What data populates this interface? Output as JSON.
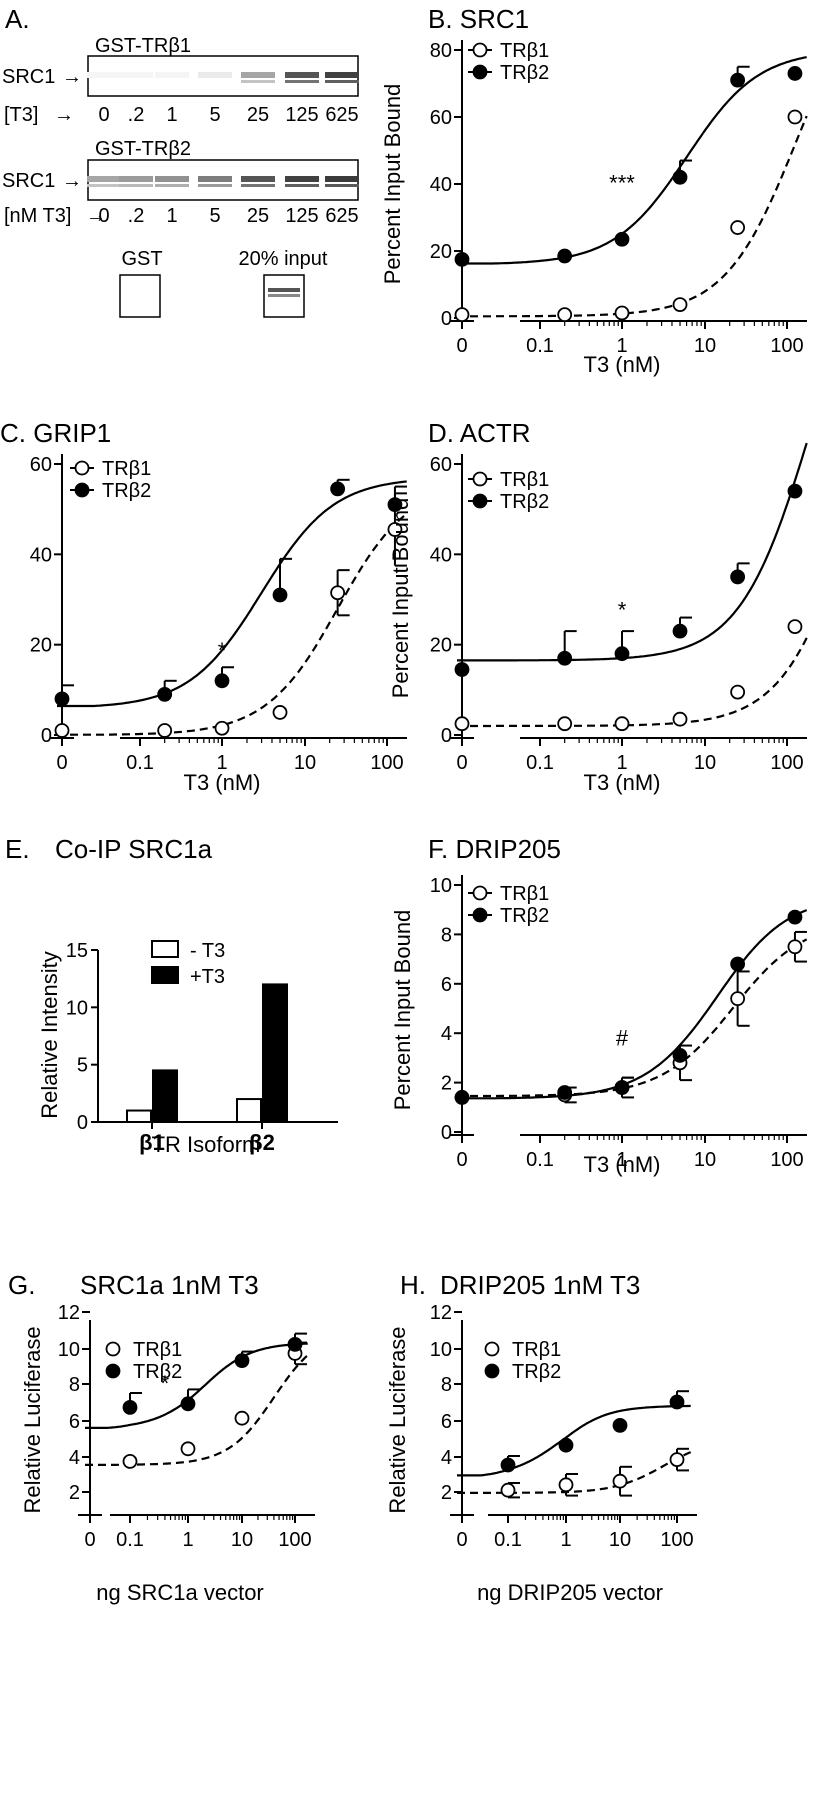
{
  "panel_a": {
    "label": "A.",
    "blot1": {
      "title": "GST-TRβ1",
      "band": "SRC1",
      "dose_label": "[T3]",
      "doses": [
        "0",
        ".2",
        "1",
        "5",
        "25",
        "125",
        "625"
      ],
      "intensity": [
        0.05,
        0.05,
        0.05,
        0.1,
        0.45,
        0.85,
        0.95
      ]
    },
    "blot2": {
      "title": "GST-TRβ2",
      "band": "SRC1",
      "dose_label": "[nM T3]",
      "doses": [
        "0",
        ".2",
        "1",
        "5",
        "25",
        "125",
        "625"
      ],
      "intensity": [
        0.45,
        0.5,
        0.55,
        0.65,
        0.85,
        0.95,
        0.98
      ]
    },
    "controls": [
      "GST",
      "20% input"
    ]
  },
  "chart_data": [
    {
      "id": "B",
      "panel_label": "B. SRC1",
      "type": "line",
      "xlabel": "T3 (nM)",
      "ylabel": "Percent Input Bound",
      "x_scale": "log-with-zero",
      "xticks": [
        "0",
        "0.1",
        "1",
        "10",
        "100"
      ],
      "ylim": [
        0,
        80
      ],
      "yticks": [
        "0",
        "20",
        "40",
        "60",
        "80"
      ],
      "series": [
        {
          "name": "TRβ1",
          "marker": "open",
          "line": "dashed",
          "x": [
            0,
            0.2,
            1,
            5,
            25,
            125
          ],
          "y": [
            1,
            1,
            1.5,
            4,
            27,
            60
          ],
          "err": [
            0,
            0,
            0,
            0,
            0,
            0
          ],
          "fit": {
            "bottom": 0.5,
            "top": 105,
            "ec50": 130,
            "hill": 1.0
          }
        },
        {
          "name": "TRβ2",
          "marker": "filled",
          "line": "solid",
          "x": [
            0,
            0.2,
            1,
            5,
            25,
            125
          ],
          "y": [
            17.5,
            18.5,
            23.5,
            42,
            71,
            73
          ],
          "err": [
            0,
            0,
            0,
            5,
            4,
            0
          ],
          "fit": {
            "bottom": 16,
            "top": 80,
            "ec50": 6,
            "hill": 1.0
          }
        }
      ],
      "annotation": "***",
      "annotation_x": 1,
      "annotation_y": 38
    },
    {
      "id": "C",
      "panel_label": "C. GRIP1",
      "type": "line",
      "xlabel": "T3 (nM)",
      "ylabel": "",
      "x_scale": "log-with-zero",
      "xticks": [
        "0",
        "0.1",
        "1",
        "10",
        "100"
      ],
      "ylim": [
        0,
        60
      ],
      "yticks": [
        "0",
        "20",
        "40",
        "60"
      ],
      "series": [
        {
          "name": "TRβ1",
          "marker": "open",
          "line": "dashed",
          "x": [
            0,
            0.2,
            1,
            5,
            25,
            125
          ],
          "y": [
            1,
            1,
            1.5,
            5,
            31.5,
            45.5
          ],
          "err": [
            0,
            0,
            0,
            0,
            5,
            8
          ],
          "fit": {
            "bottom": 0,
            "top": 56,
            "ec50": 25,
            "hill": 1.0
          }
        },
        {
          "name": "TRβ2",
          "marker": "filled",
          "line": "solid",
          "x": [
            0,
            0.2,
            1,
            5,
            25,
            125
          ],
          "y": [
            8,
            9,
            12,
            31,
            54.5,
            51
          ],
          "err": [
            3,
            3,
            3,
            8,
            2,
            4
          ],
          "fit": {
            "bottom": 6,
            "top": 57,
            "ec50": 3,
            "hill": 1.0
          }
        }
      ],
      "annotation": "*",
      "annotation_x": 1,
      "annotation_y": 17
    },
    {
      "id": "D",
      "panel_label": "D. ACTR",
      "type": "line",
      "xlabel": "T3 (nM)",
      "ylabel": "Percent Input Bound",
      "x_scale": "log-with-zero",
      "xticks": [
        "0",
        "0.1",
        "1",
        "10",
        "100"
      ],
      "ylim": [
        0,
        60
      ],
      "yticks": [
        "0",
        "20",
        "40",
        "60"
      ],
      "series": [
        {
          "name": "TRβ1",
          "marker": "open",
          "line": "dashed",
          "x": [
            0,
            0.2,
            1,
            5,
            25,
            125
          ],
          "y": [
            2.5,
            2.5,
            2.5,
            3.5,
            9.5,
            24
          ],
          "err": [
            0,
            0,
            0,
            0,
            0,
            0
          ],
          "fit": {
            "bottom": 2,
            "top": 100,
            "ec50": 700,
            "hill": 1.0
          }
        },
        {
          "name": "TRβ2",
          "marker": "filled",
          "line": "solid",
          "x": [
            0,
            0.2,
            1,
            5,
            25,
            125
          ],
          "y": [
            14.5,
            17,
            18,
            23,
            35,
            54
          ],
          "err": [
            0,
            6,
            5,
            3,
            3,
            0
          ],
          "fit": {
            "bottom": 16.5,
            "top": 120,
            "ec50": 200,
            "hill": 1.0
          }
        }
      ],
      "annotation": "*",
      "annotation_x": 1,
      "annotation_y": 26
    },
    {
      "id": "E",
      "panel_label": "E.",
      "panel_title": "Co-IP SRC1a",
      "type": "bar",
      "xlabel": "TR Isoform",
      "ylabel": "Relative Intensity",
      "categories": [
        "β1",
        "β2"
      ],
      "ylim": [
        0,
        15
      ],
      "yticks": [
        "0",
        "5",
        "10",
        "15"
      ],
      "series": [
        {
          "name": "- T3",
          "fill": "white",
          "values": [
            1,
            2
          ]
        },
        {
          "name": "+T3",
          "fill": "black",
          "values": [
            4.5,
            12
          ]
        }
      ]
    },
    {
      "id": "F",
      "panel_label": "F. DRIP205",
      "type": "line",
      "xlabel": "T3 (nM)",
      "ylabel": "Percent Input Bound",
      "x_scale": "log-with-zero",
      "xticks": [
        "0",
        "0.1",
        "1",
        "10",
        "100"
      ],
      "ylim": [
        0,
        10
      ],
      "yticks": [
        "0",
        "2",
        "4",
        "6",
        "8",
        "10"
      ],
      "series": [
        {
          "name": "TRβ1",
          "marker": "open",
          "line": "dashed",
          "x": [
            0,
            0.2,
            1,
            5,
            25,
            125
          ],
          "y": [
            1.4,
            1.5,
            1.8,
            2.8,
            5.4,
            7.5
          ],
          "err": [
            0,
            0.3,
            0.4,
            0.7,
            1.1,
            0.6
          ],
          "fit": {
            "bottom": 1.45,
            "top": 8.6,
            "ec50": 22,
            "hill": 1.0
          }
        },
        {
          "name": "TRβ2",
          "marker": "filled",
          "line": "solid",
          "x": [
            0,
            0.2,
            1,
            5,
            25,
            125
          ],
          "y": [
            1.4,
            1.6,
            1.8,
            3.1,
            6.8,
            8.7
          ],
          "err": [
            0,
            0,
            0.4,
            0,
            0,
            0
          ],
          "fit": {
            "bottom": 1.35,
            "top": 9.6,
            "ec50": 14,
            "hill": 1.0
          }
        }
      ],
      "annotation": "#",
      "annotation_x": 1,
      "annotation_y": 3.5
    },
    {
      "id": "G",
      "panel_label": "G.",
      "panel_title": "SRC1a 1nM T3",
      "type": "line",
      "xlabel": "ng SRC1a vector",
      "ylabel": "Relative Luciferase",
      "x_scale": "log-with-zero",
      "xticks": [
        "0",
        "0.1",
        "1",
        "10",
        "100"
      ],
      "ylim": [
        0,
        12
      ],
      "yticks": [
        "2",
        "4",
        "6",
        "8",
        "10",
        "12"
      ],
      "series": [
        {
          "name": "TRβ1",
          "marker": "open",
          "line": "dashed",
          "x": [
            0.1,
            1,
            10,
            100
          ],
          "y": [
            3.7,
            4.4,
            6.1,
            9.7
          ],
          "err": [
            0,
            0,
            0,
            0.6
          ],
          "fit": {
            "bottom": 3.5,
            "top": 11,
            "ec50": 40,
            "hill": 1.0
          }
        },
        {
          "name": "TRβ2",
          "marker": "filled",
          "line": "solid",
          "x": [
            0.1,
            1,
            10,
            100
          ],
          "y": [
            6.7,
            6.9,
            9.3,
            10.2
          ],
          "err": [
            0.8,
            0.8,
            0.5,
            0.6
          ],
          "fit": {
            "bottom": 5.5,
            "top": 10.3,
            "ec50": 2,
            "hill": 1.0
          }
        }
      ],
      "annotation": "*",
      "annotation_x": 0.4,
      "annotation_y": 7.6
    },
    {
      "id": "H",
      "panel_label": "H.",
      "panel_title": "DRIP205 1nM T3",
      "type": "line",
      "xlabel": "ng DRIP205 vector",
      "ylabel": "Relative Luciferase",
      "x_scale": "log-with-zero",
      "xticks": [
        "0",
        "0.1",
        "1",
        "10",
        "100"
      ],
      "ylim": [
        0,
        12
      ],
      "yticks": [
        "2",
        "4",
        "6",
        "8",
        "10",
        "12"
      ],
      "series": [
        {
          "name": "TRβ1",
          "marker": "open",
          "line": "dashed",
          "x": [
            0.1,
            1,
            10,
            100
          ],
          "y": [
            2.1,
            2.4,
            2.6,
            3.8
          ],
          "err": [
            0.4,
            0.6,
            0.8,
            0.6
          ],
          "fit": {
            "bottom": 1.95,
            "top": 5,
            "ec50": 60,
            "hill": 1.0
          }
        },
        {
          "name": "TRβ2",
          "marker": "filled",
          "line": "solid",
          "x": [
            0.1,
            1,
            10,
            100
          ],
          "y": [
            3.5,
            4.6,
            5.7,
            7.0
          ],
          "err": [
            0.5,
            0,
            0,
            0.6
          ],
          "fit": {
            "bottom": 2.8,
            "top": 6.8,
            "ec50": 0.8,
            "hill": 1.0
          }
        }
      ]
    }
  ]
}
